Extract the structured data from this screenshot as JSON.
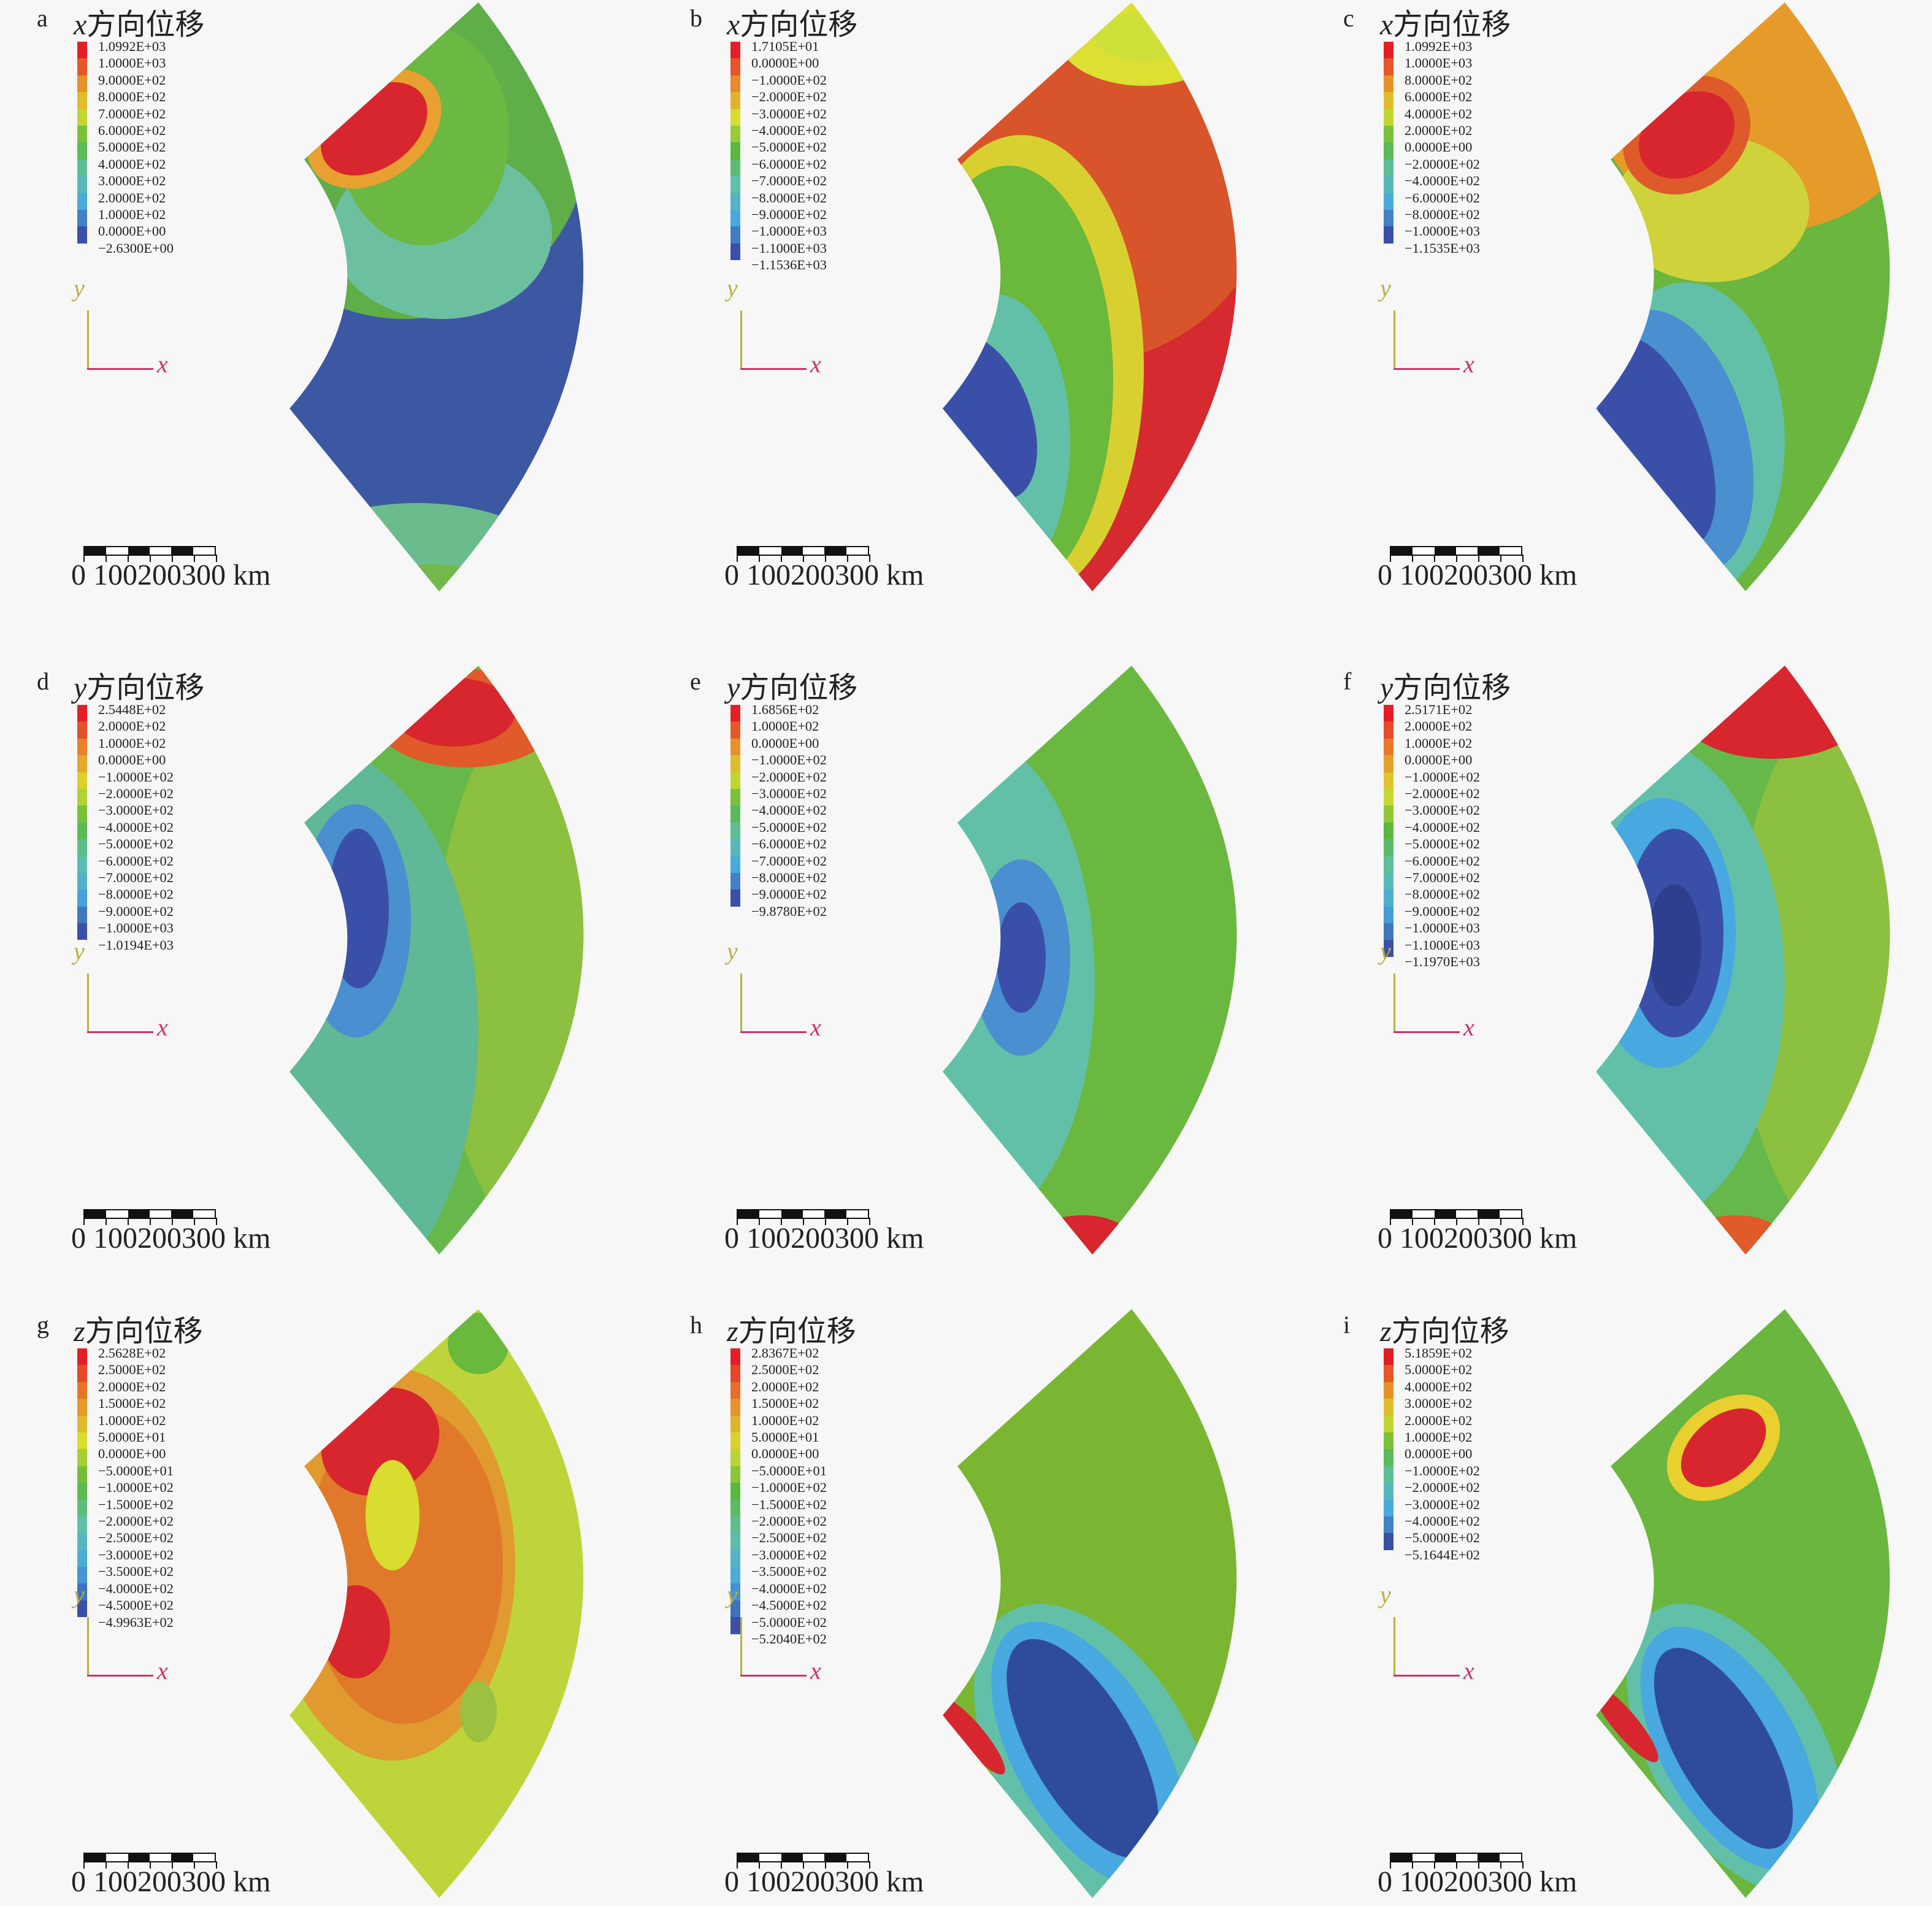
{
  "scale_bar": {
    "ticks": [
      "0",
      "100",
      "200",
      "300"
    ],
    "unit": "km"
  },
  "palette": [
    "#e41e26",
    "#e8892a",
    "#d8dd30",
    "#5ab83c",
    "#5fc0a8",
    "#48a8e0",
    "#3a50a8"
  ],
  "chart_data": [
    {
      "type": "heatmap",
      "label": "a",
      "title_var": "x",
      "title_text": "方向位移",
      "axis_y": "y",
      "axis_x": "x",
      "legend_levels": [
        "1.0992E+03",
        "1.0000E+03",
        "9.0000E+02",
        "8.0000E+02",
        "7.0000E+02",
        "6.0000E+02",
        "5.0000E+02",
        "4.0000E+02",
        "3.0000E+02",
        "2.0000E+02",
        "1.0000E+02",
        "0.0000E+00",
        "−2.6300E+00"
      ]
    },
    {
      "type": "heatmap",
      "label": "b",
      "title_var": "x",
      "title_text": "方向位移",
      "axis_y": "y",
      "axis_x": "x",
      "legend_levels": [
        "1.7105E+01",
        "0.0000E+00",
        "−1.0000E+02",
        "−2.0000E+02",
        "−3.0000E+02",
        "−4.0000E+02",
        "−5.0000E+02",
        "−6.0000E+02",
        "−7.0000E+02",
        "−8.0000E+02",
        "−9.0000E+02",
        "−1.0000E+03",
        "−1.1000E+03",
        "−1.1536E+03"
      ]
    },
    {
      "type": "heatmap",
      "label": "c",
      "title_var": "x",
      "title_text": "方向位移",
      "axis_y": "y",
      "axis_x": "x",
      "legend_levels": [
        "1.0992E+03",
        "1.0000E+03",
        "8.0000E+02",
        "6.0000E+02",
        "4.0000E+02",
        "2.0000E+02",
        "0.0000E+00",
        "−2.0000E+02",
        "−4.0000E+02",
        "−6.0000E+02",
        "−8.0000E+02",
        "−1.0000E+03",
        "−1.1535E+03"
      ]
    },
    {
      "type": "heatmap",
      "label": "d",
      "title_var": "y",
      "title_text": "方向位移",
      "axis_y": "y",
      "axis_x": "x",
      "legend_levels": [
        "2.5448E+02",
        "2.0000E+02",
        "1.0000E+02",
        "0.0000E+00",
        "−1.0000E+02",
        "−2.0000E+02",
        "−3.0000E+02",
        "−4.0000E+02",
        "−5.0000E+02",
        "−6.0000E+02",
        "−7.0000E+02",
        "−8.0000E+02",
        "−9.0000E+02",
        "−1.0000E+03",
        "−1.0194E+03"
      ]
    },
    {
      "type": "heatmap",
      "label": "e",
      "title_var": "y",
      "title_text": "方向位移",
      "axis_y": "y",
      "axis_x": "x",
      "legend_levels": [
        "1.6856E+02",
        "1.0000E+02",
        "0.0000E+00",
        "−1.0000E+02",
        "−2.0000E+02",
        "−3.0000E+02",
        "−4.0000E+02",
        "−5.0000E+02",
        "−6.0000E+02",
        "−7.0000E+02",
        "−8.0000E+02",
        "−9.0000E+02",
        "−9.8780E+02"
      ]
    },
    {
      "type": "heatmap",
      "label": "f",
      "title_var": "y",
      "title_text": "方向位移",
      "axis_y": "y",
      "axis_x": "x",
      "legend_levels": [
        "2.5171E+02",
        "2.0000E+02",
        "1.0000E+02",
        "0.0000E+00",
        "−1.0000E+02",
        "−2.0000E+02",
        "−3.0000E+02",
        "−4.0000E+02",
        "−5.0000E+02",
        "−6.0000E+02",
        "−7.0000E+02",
        "−8.0000E+02",
        "−9.0000E+02",
        "−1.0000E+03",
        "−1.1000E+03",
        "−1.1970E+03"
      ]
    },
    {
      "type": "heatmap",
      "label": "g",
      "title_var": "z",
      "title_text": "方向位移",
      "axis_y": "y",
      "axis_x": "x",
      "legend_levels": [
        "2.5628E+02",
        "2.5000E+02",
        "2.0000E+02",
        "1.5000E+02",
        "1.0000E+02",
        "5.0000E+01",
        "0.0000E+00",
        "−5.0000E+01",
        "−1.0000E+02",
        "−1.5000E+02",
        "−2.0000E+02",
        "−2.5000E+02",
        "−3.0000E+02",
        "−3.5000E+02",
        "−4.0000E+02",
        "−4.5000E+02",
        "−4.9963E+02"
      ]
    },
    {
      "type": "heatmap",
      "label": "h",
      "title_var": "z",
      "title_text": "方向位移",
      "axis_y": "y",
      "axis_x": "x",
      "legend_levels": [
        "2.8367E+02",
        "2.5000E+02",
        "2.0000E+02",
        "1.5000E+02",
        "1.0000E+02",
        "5.0000E+01",
        "0.0000E+00",
        "−5.0000E+01",
        "−1.0000E+02",
        "−1.5000E+02",
        "−2.0000E+02",
        "−2.5000E+02",
        "−3.0000E+02",
        "−3.5000E+02",
        "−4.0000E+02",
        "−4.5000E+02",
        "−5.0000E+02",
        "−5.2040E+02"
      ]
    },
    {
      "type": "heatmap",
      "label": "i",
      "title_var": "z",
      "title_text": "方向位移",
      "axis_y": "y",
      "axis_x": "x",
      "legend_levels": [
        "5.1859E+02",
        "5.0000E+02",
        "4.0000E+02",
        "3.0000E+02",
        "2.0000E+02",
        "1.0000E+02",
        "0.0000E+00",
        "−1.0000E+02",
        "−2.0000E+02",
        "−3.0000E+02",
        "−4.0000E+02",
        "−5.0000E+02",
        "−5.1644E+02"
      ]
    }
  ]
}
